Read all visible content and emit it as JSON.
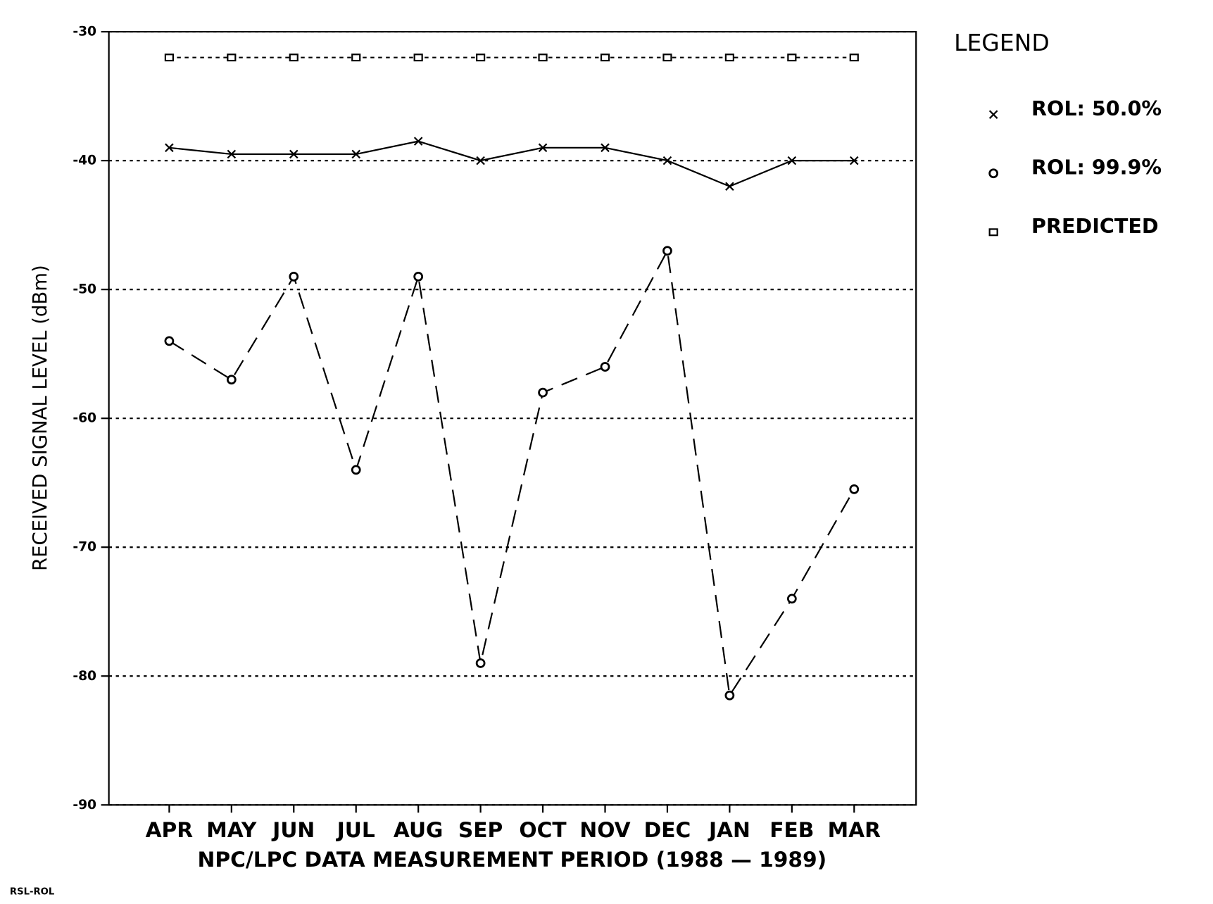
{
  "chart_data": {
    "type": "line",
    "ylabel": "RECEIVED SIGNAL LEVEL (dBm)",
    "xlabel": "NPC/LPC DATA MEASUREMENT PERIOD (1988 — 1989)",
    "footnote": "RSL-ROL",
    "legend_title": "LEGEND",
    "legend": "right",
    "grid": true,
    "categories": [
      "APR",
      "MAY",
      "JUN",
      "JUL",
      "AUG",
      "SEP",
      "OCT",
      "NOV",
      "DEC",
      "JAN",
      "FEB",
      "MAR"
    ],
    "ylim": [
      -90,
      -30
    ],
    "yticks": [
      -90,
      -80,
      -70,
      -60,
      -50,
      -40,
      -30
    ],
    "series": [
      {
        "name": "ROL: 50.0%",
        "color": "#000000",
        "marker": "x",
        "line_style": "solid",
        "values": [
          -39,
          -39.5,
          -39.5,
          -39.5,
          -38.5,
          -40,
          -39,
          -39,
          -40,
          -42,
          -40,
          -40
        ]
      },
      {
        "name": "ROL: 99.9%",
        "color": "#000000",
        "marker": "o",
        "line_style": "dashed",
        "values": [
          -54,
          -57,
          -49,
          -64,
          -49,
          -79,
          -58,
          -56,
          -47,
          -81.5,
          -74,
          -65.5
        ]
      },
      {
        "name": "PREDICTED",
        "color": "#000000",
        "marker": "square",
        "line_style": "dotted",
        "values": [
          -32,
          -32,
          -32,
          -32,
          -32,
          -32,
          -32,
          -32,
          -32,
          -32,
          -32,
          -32
        ]
      }
    ]
  }
}
